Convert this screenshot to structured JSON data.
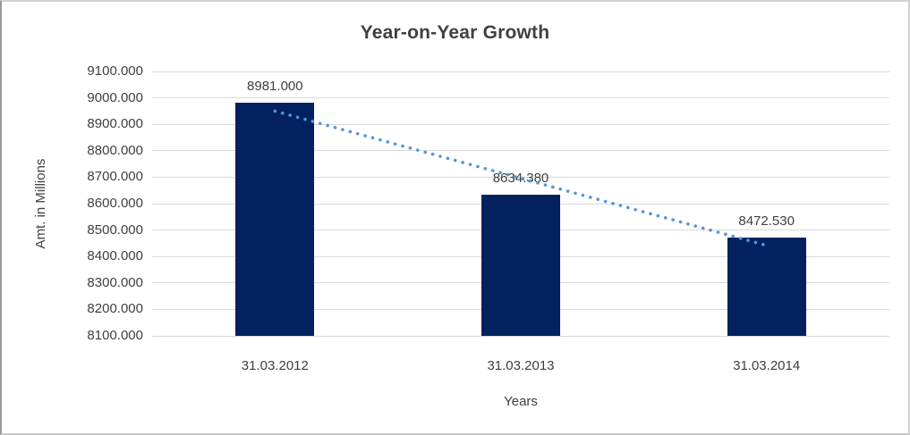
{
  "chart_data": {
    "type": "bar",
    "title": "Year-on-Year Growth",
    "xlabel": "Years",
    "ylabel": "Amt. in Millions",
    "categories": [
      "31.03.2012",
      "31.03.2013",
      "31.03.2014"
    ],
    "values": [
      8981.0,
      8634.38,
      8472.53
    ],
    "data_labels": [
      "8981.000",
      "8634.380",
      "8472.530"
    ],
    "ylim": [
      8100,
      9100
    ],
    "ytick_step": 100,
    "ytick_labels": [
      "8100.000",
      "8200.000",
      "8300.000",
      "8400.000",
      "8500.000",
      "8600.000",
      "8700.000",
      "8800.000",
      "8900.000",
      "9000.000",
      "9100.000"
    ],
    "grid": true,
    "legend": "none",
    "trendline": {
      "type": "linear",
      "style": "dotted",
      "endpoints": [
        8950,
        8442
      ]
    },
    "colors": {
      "bar": "#02215E",
      "trendline": "#4F97DC",
      "gridline": "#D9D9D9",
      "text": "#3F3F3F",
      "title": "#404040"
    }
  }
}
